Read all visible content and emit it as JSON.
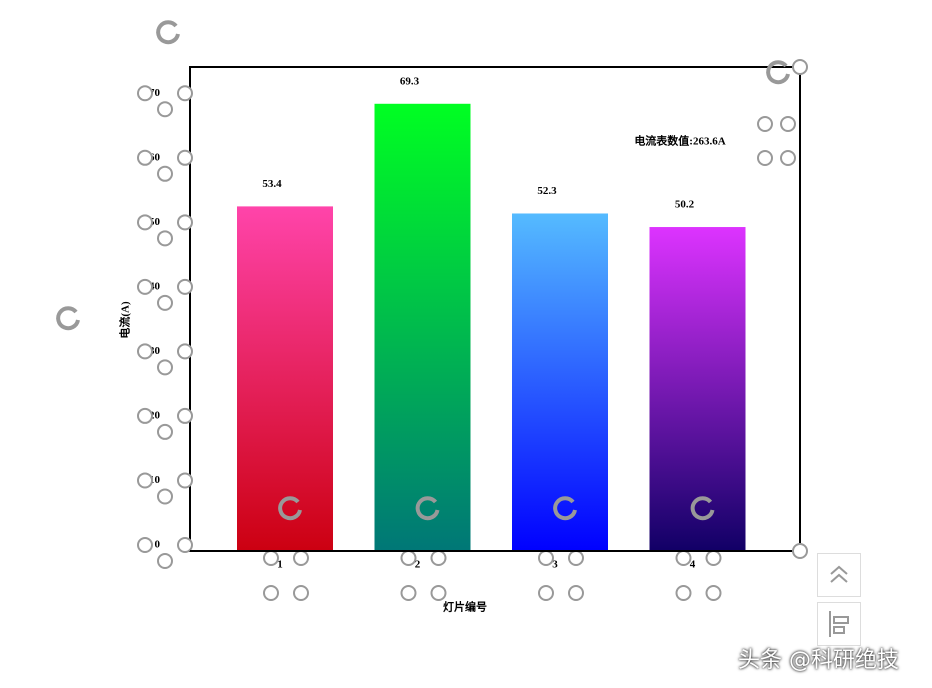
{
  "chart_data": {
    "type": "bar",
    "y_label": "电流(A)",
    "x_label": "灯片编号",
    "annotation": "电流表数值:263.6A",
    "categories": [
      "1",
      "2",
      "3",
      "4"
    ],
    "values": [
      53.4,
      69.3,
      52.3,
      50.2
    ],
    "gradients": [
      [
        "#ff44aa",
        "#cc0011"
      ],
      [
        "#00ff22",
        "#007777"
      ],
      [
        "#55bbff",
        "#0000ff"
      ],
      [
        "#dd33ff",
        "#110066"
      ]
    ],
    "ylim": [
      0,
      75
    ],
    "yticks": [
      0,
      10,
      20,
      30,
      40,
      50,
      60,
      70
    ]
  },
  "watermark": "头条 @科研绝技"
}
